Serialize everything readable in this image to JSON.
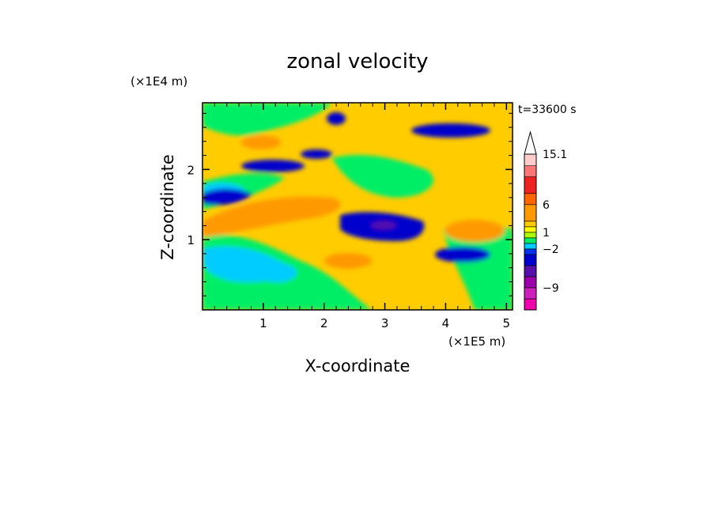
{
  "chart_data": {
    "type": "heatmap",
    "title": "zonal velocity",
    "xlabel": "X-coordinate",
    "ylabel": "Z-coordinate",
    "x_unit": "(×1E5 m)",
    "y_unit": "(×1E4 m)",
    "time_label": "t=33600 s",
    "xlim": [
      0,
      5.1
    ],
    "ylim": [
      0,
      2.95
    ],
    "x_ticks": [
      "1",
      "2",
      "3",
      "4",
      "5"
    ],
    "y_ticks": [
      "1",
      "2"
    ],
    "colorbar_labels": [
      "15.1",
      "6",
      "1",
      "−2",
      "−9"
    ],
    "colorbar_levels": [
      -13,
      -11,
      -9,
      -7,
      -5,
      -3,
      -2,
      -1,
      0,
      1,
      2,
      3,
      6,
      8,
      11,
      13,
      15.1
    ],
    "colorbar_colors": [
      "#ee00aa",
      "#cc22bb",
      "#9900aa",
      "#5511aa",
      "#0000cc",
      "#0033ee",
      "#00ccff",
      "#00ee66",
      "#aaff00",
      "#ffff00",
      "#ffcc00",
      "#ff9900",
      "#ff6600",
      "#ee2222",
      "#ff7777",
      "#ffcccc"
    ],
    "grid": false
  }
}
